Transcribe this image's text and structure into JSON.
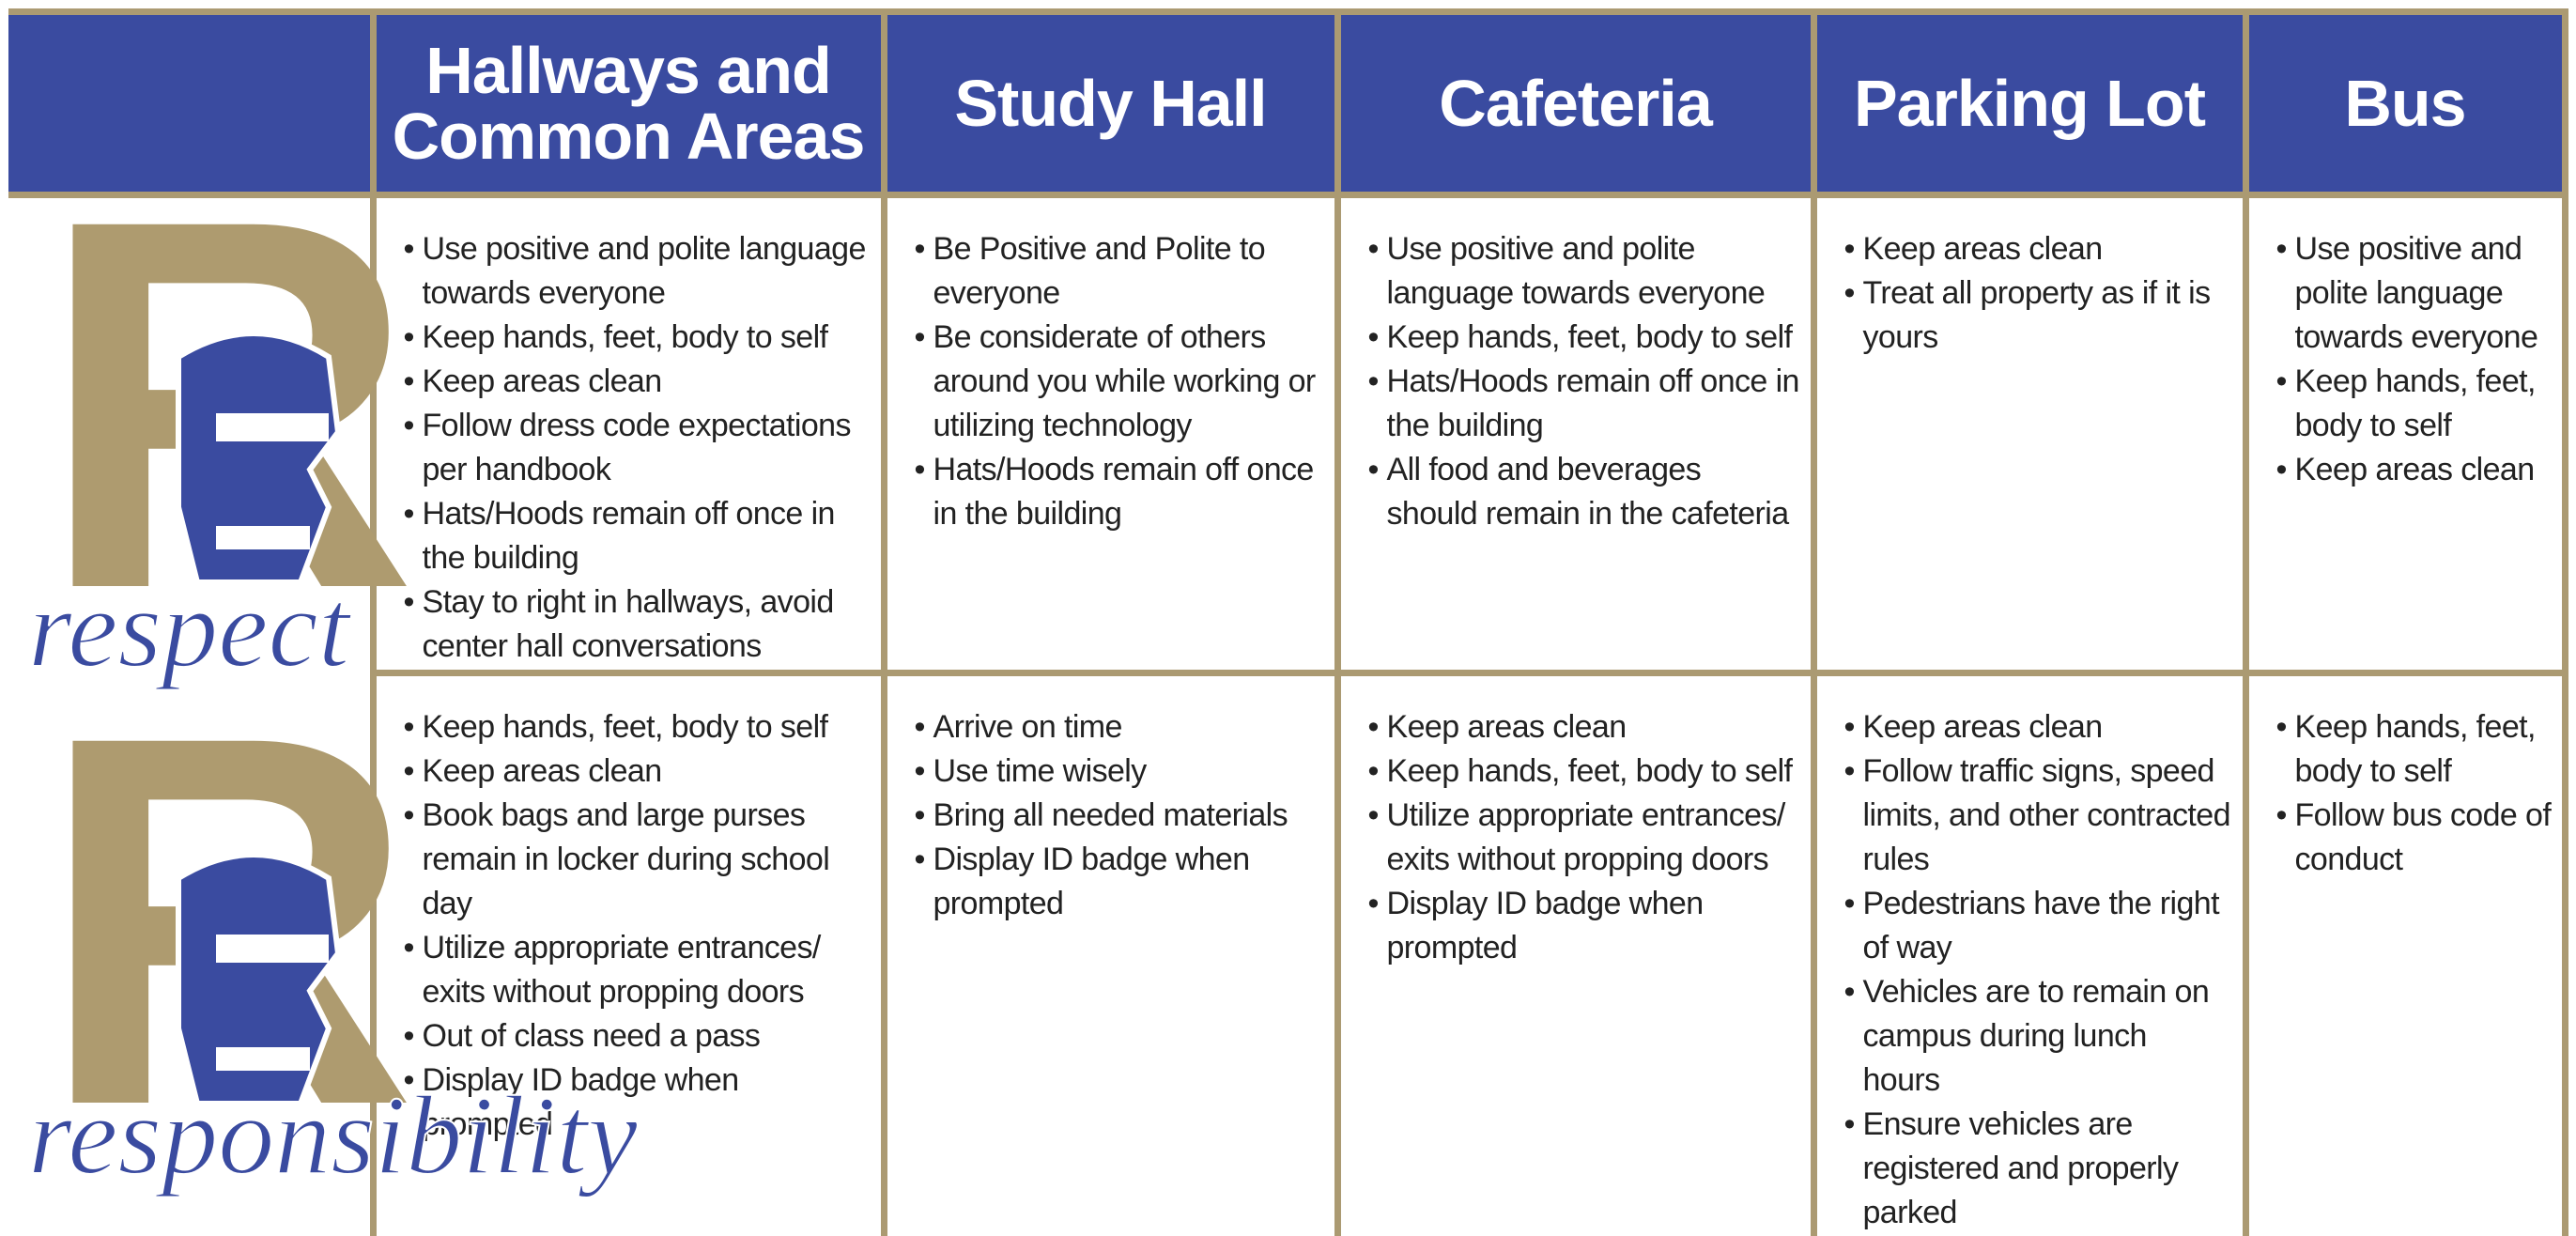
{
  "header": {
    "columns": [
      "Hallways and Common Areas",
      "Study Hall",
      "Cafeteria",
      "Parking Lot",
      "Bus"
    ]
  },
  "rows": [
    {
      "label": "respect",
      "cells": [
        [
          "Use positive and polite language towards everyone",
          "Keep hands, feet, body to self",
          "Keep areas clean",
          "Follow dress code expectations per handbook",
          "Hats/Hoods remain off once in the building",
          "Stay to right in hallways, avoid center hall conversations"
        ],
        [
          "Be Positive and Polite to everyone",
          "Be considerate of others around you while working or utilizing technology",
          "Hats/Hoods remain off once in the building"
        ],
        [
          "Use positive and polite language towards everyone",
          "Keep hands, feet, body to self",
          "Hats/Hoods remain off once in the building",
          "All food and beverages should remain in the cafeteria"
        ],
        [
          "Keep areas clean",
          "Treat all property as if it is yours"
        ],
        [
          "Use positive and polite language towards everyone",
          "Keep hands, feet, body to self",
          "Keep areas clean"
        ]
      ]
    },
    {
      "label": "responsibility",
      "cells": [
        [
          "Keep hands, feet, body to self",
          "Keep areas clean",
          "Book bags and large purses remain in locker during school day",
          "Utilize appropriate entrances/ exits without propping doors",
          "Out of class need a pass",
          "Display ID badge when prompted"
        ],
        [
          "Arrive on time",
          "Use time wisely",
          "Bring all needed materials",
          "Display ID badge when prompted"
        ],
        [
          "Keep areas clean",
          "Keep hands, feet, body to self",
          "Utilize appropriate entrances/ exits without propping doors",
          "Display ID badge when prompted"
        ],
        [
          "Keep areas clean",
          "Follow traffic signs, speed limits, and other contracted rules",
          "Pedestrians have the right of way",
          "Vehicles are to remain on campus during lunch hours",
          "Ensure vehicles are registered and properly parked"
        ],
        [
          "Keep hands, feet, body to self",
          "Follow bus code of conduct"
        ]
      ]
    }
  ]
}
